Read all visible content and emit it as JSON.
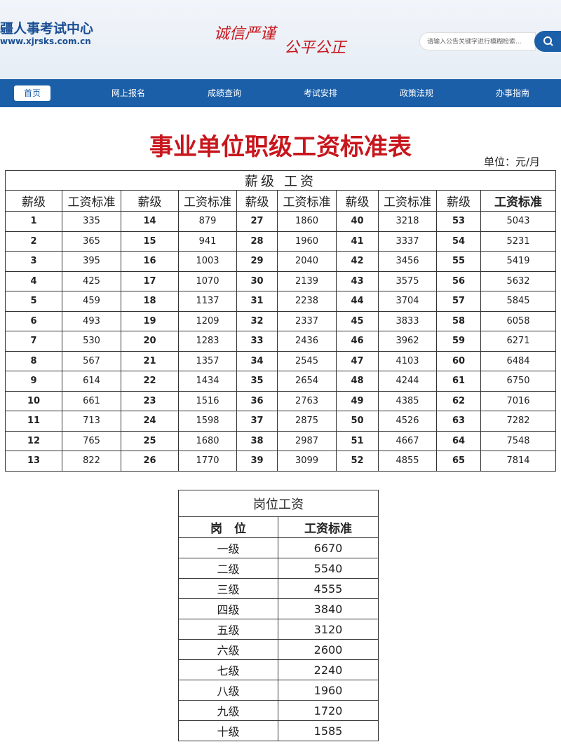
{
  "header": {
    "site_name": "疆人事考试中心",
    "url": "www.xjrsks.com.cn",
    "slogan_1": "诚信严谨",
    "slogan_2": "公平公正",
    "search_placeholder": "请输入公告关键字进行模糊检索..."
  },
  "nav": [
    "首页",
    "网上报名",
    "成绩查询",
    "考试安排",
    "政策法规",
    "办事指南"
  ],
  "title": "事业单位职级工资标准表",
  "unit": "单位：元/月",
  "salary_table": {
    "caption": "薪级 工资",
    "headers": [
      "薪级",
      "工资标准",
      "薪级",
      "工资标准",
      "薪级",
      "工资标准",
      "薪级",
      "工资标准",
      "薪级",
      "工资标准"
    ],
    "rows": [
      [
        1,
        335,
        14,
        879,
        27,
        1860,
        40,
        3218,
        53,
        5043
      ],
      [
        2,
        365,
        15,
        941,
        28,
        1960,
        41,
        3337,
        54,
        5231
      ],
      [
        3,
        395,
        16,
        1003,
        29,
        2040,
        42,
        3456,
        55,
        5419
      ],
      [
        4,
        425,
        17,
        1070,
        30,
        2139,
        43,
        3575,
        56,
        5632
      ],
      [
        5,
        459,
        18,
        1137,
        31,
        2238,
        44,
        3704,
        57,
        5845
      ],
      [
        6,
        493,
        19,
        1209,
        32,
        2337,
        45,
        3833,
        58,
        6058
      ],
      [
        7,
        530,
        20,
        1283,
        33,
        2436,
        46,
        3962,
        59,
        6271
      ],
      [
        8,
        567,
        21,
        1357,
        34,
        2545,
        47,
        4103,
        60,
        6484
      ],
      [
        9,
        614,
        22,
        1434,
        35,
        2654,
        48,
        4244,
        61,
        6750
      ],
      [
        10,
        661,
        23,
        1516,
        36,
        2763,
        49,
        4385,
        62,
        7016
      ],
      [
        11,
        713,
        24,
        1598,
        37,
        2875,
        50,
        4526,
        63,
        7282
      ],
      [
        12,
        765,
        25,
        1680,
        38,
        2987,
        51,
        4667,
        64,
        7548
      ],
      [
        13,
        822,
        26,
        1770,
        39,
        3099,
        52,
        4855,
        65,
        7814
      ]
    ]
  },
  "post_table": {
    "caption": "岗位工资",
    "headers": [
      "岗　位",
      "工资标准"
    ],
    "rows": [
      [
        "一级",
        6670
      ],
      [
        "二级",
        5540
      ],
      [
        "三级",
        4555
      ],
      [
        "四级",
        3840
      ],
      [
        "五级",
        3120
      ],
      [
        "六级",
        2600
      ],
      [
        "七级",
        2240
      ],
      [
        "八级",
        1960
      ],
      [
        "九级",
        1720
      ],
      [
        "十级",
        1585
      ]
    ]
  }
}
